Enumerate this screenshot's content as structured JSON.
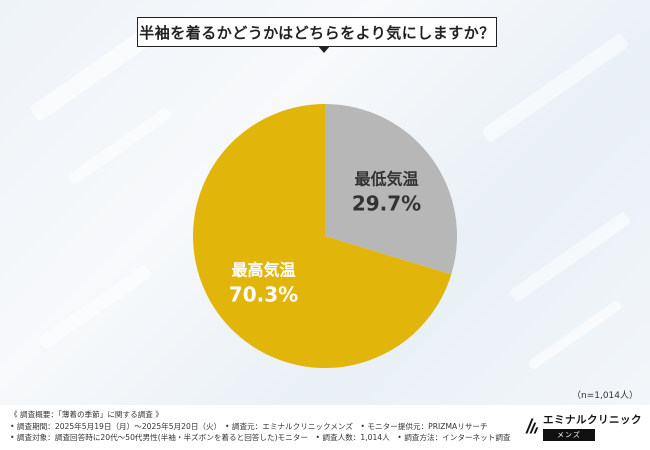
{
  "title": "半袖を着るかどうかはどちらをより気にしますか？",
  "sample_size": "（n=1,014人）",
  "footer": {
    "heading": "《 調査概要：「薄着の季節」に関する調査 》",
    "line1": "• 調査期間：2025年5月19日（月）～2025年5月20日（火）　• 調査元：エミナルクリニックメンズ　• モニター提供元：PRIZMAリサーチ",
    "line2": "• 調査対象：調査回答時に20代～50代男性(半袖・半ズボンを着ると回答した)モニター　• 調査人数：1,014人　• 調査方法：インターネット調査"
  },
  "logo": {
    "main": "エミナルクリニック",
    "sub": "メンズ"
  },
  "chart_data": {
    "type": "pie",
    "slices": [
      {
        "label": "最低気温",
        "value": 29.7,
        "display": "29.7%",
        "color": "#b7b7b7",
        "label_color": "#333333"
      },
      {
        "label": "最高気温",
        "value": 70.3,
        "display": "70.3%",
        "color": "#e2b50b",
        "label_color": "#ffffff"
      }
    ]
  }
}
